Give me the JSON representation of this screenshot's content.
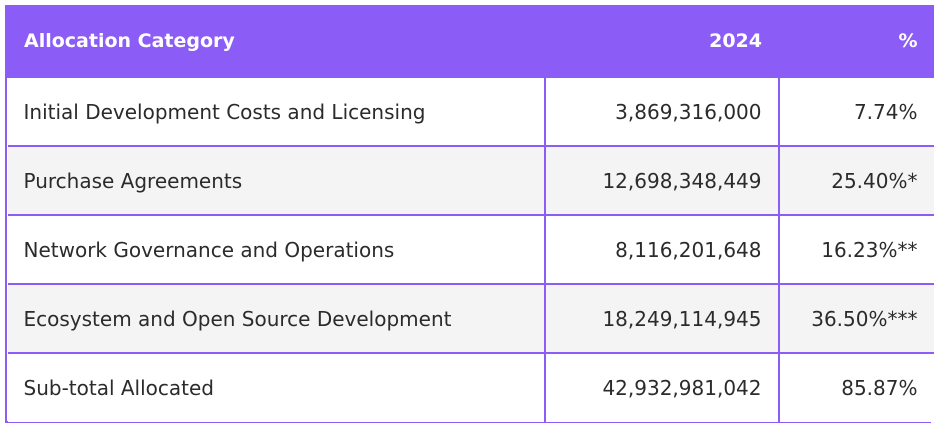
{
  "table": {
    "headers": {
      "category": "Allocation Category",
      "year": "2024",
      "percent": "%"
    },
    "rows": [
      {
        "category": "Initial Development Costs and Licensing",
        "amount": "3,869,316,000",
        "percent": "7.74%"
      },
      {
        "category": "Purchase Agreements",
        "amount": "12,698,348,449",
        "percent": "25.40%*"
      },
      {
        "category": "Network Governance and Operations",
        "amount": "8,116,201,648",
        "percent": "16.23%**"
      },
      {
        "category": "Ecosystem and Open Source Development",
        "amount": "18,249,114,945",
        "percent": "36.50%***"
      },
      {
        "category": "Sub-total Allocated",
        "amount": "42,932,981,042",
        "percent": "85.87%"
      }
    ]
  },
  "colors": {
    "accent": "#8b5cf6",
    "header_text": "#ffffff",
    "row_alt": "#f4f4f4"
  }
}
